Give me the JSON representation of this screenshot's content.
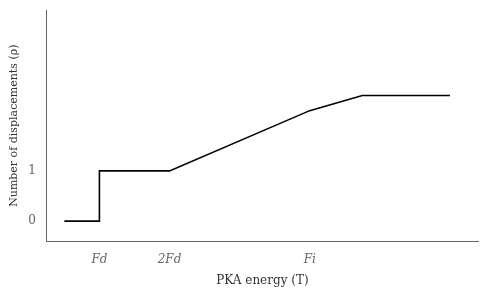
{
  "chart_data": {
    "type": "line",
    "x": [
      0,
      1,
      1,
      3,
      3,
      7,
      8.5,
      8.5,
      11
    ],
    "values": [
      0,
      0,
      1,
      1,
      1,
      2.2,
      2.5,
      2.5,
      2.5
    ],
    "color": "#000000",
    "xlabel": "PKA energy (T)",
    "ylabel": "Number of displacements (ρ)",
    "xlim": [
      -0.5,
      11.8
    ],
    "ylim": [
      -0.4,
      4.2
    ],
    "xticks": [
      {
        "value": 1,
        "label": "Fd"
      },
      {
        "value": 3,
        "label": "2Fd"
      },
      {
        "value": 7,
        "label": "Fi"
      }
    ],
    "yticks": [
      0,
      1
    ],
    "grid": false
  }
}
